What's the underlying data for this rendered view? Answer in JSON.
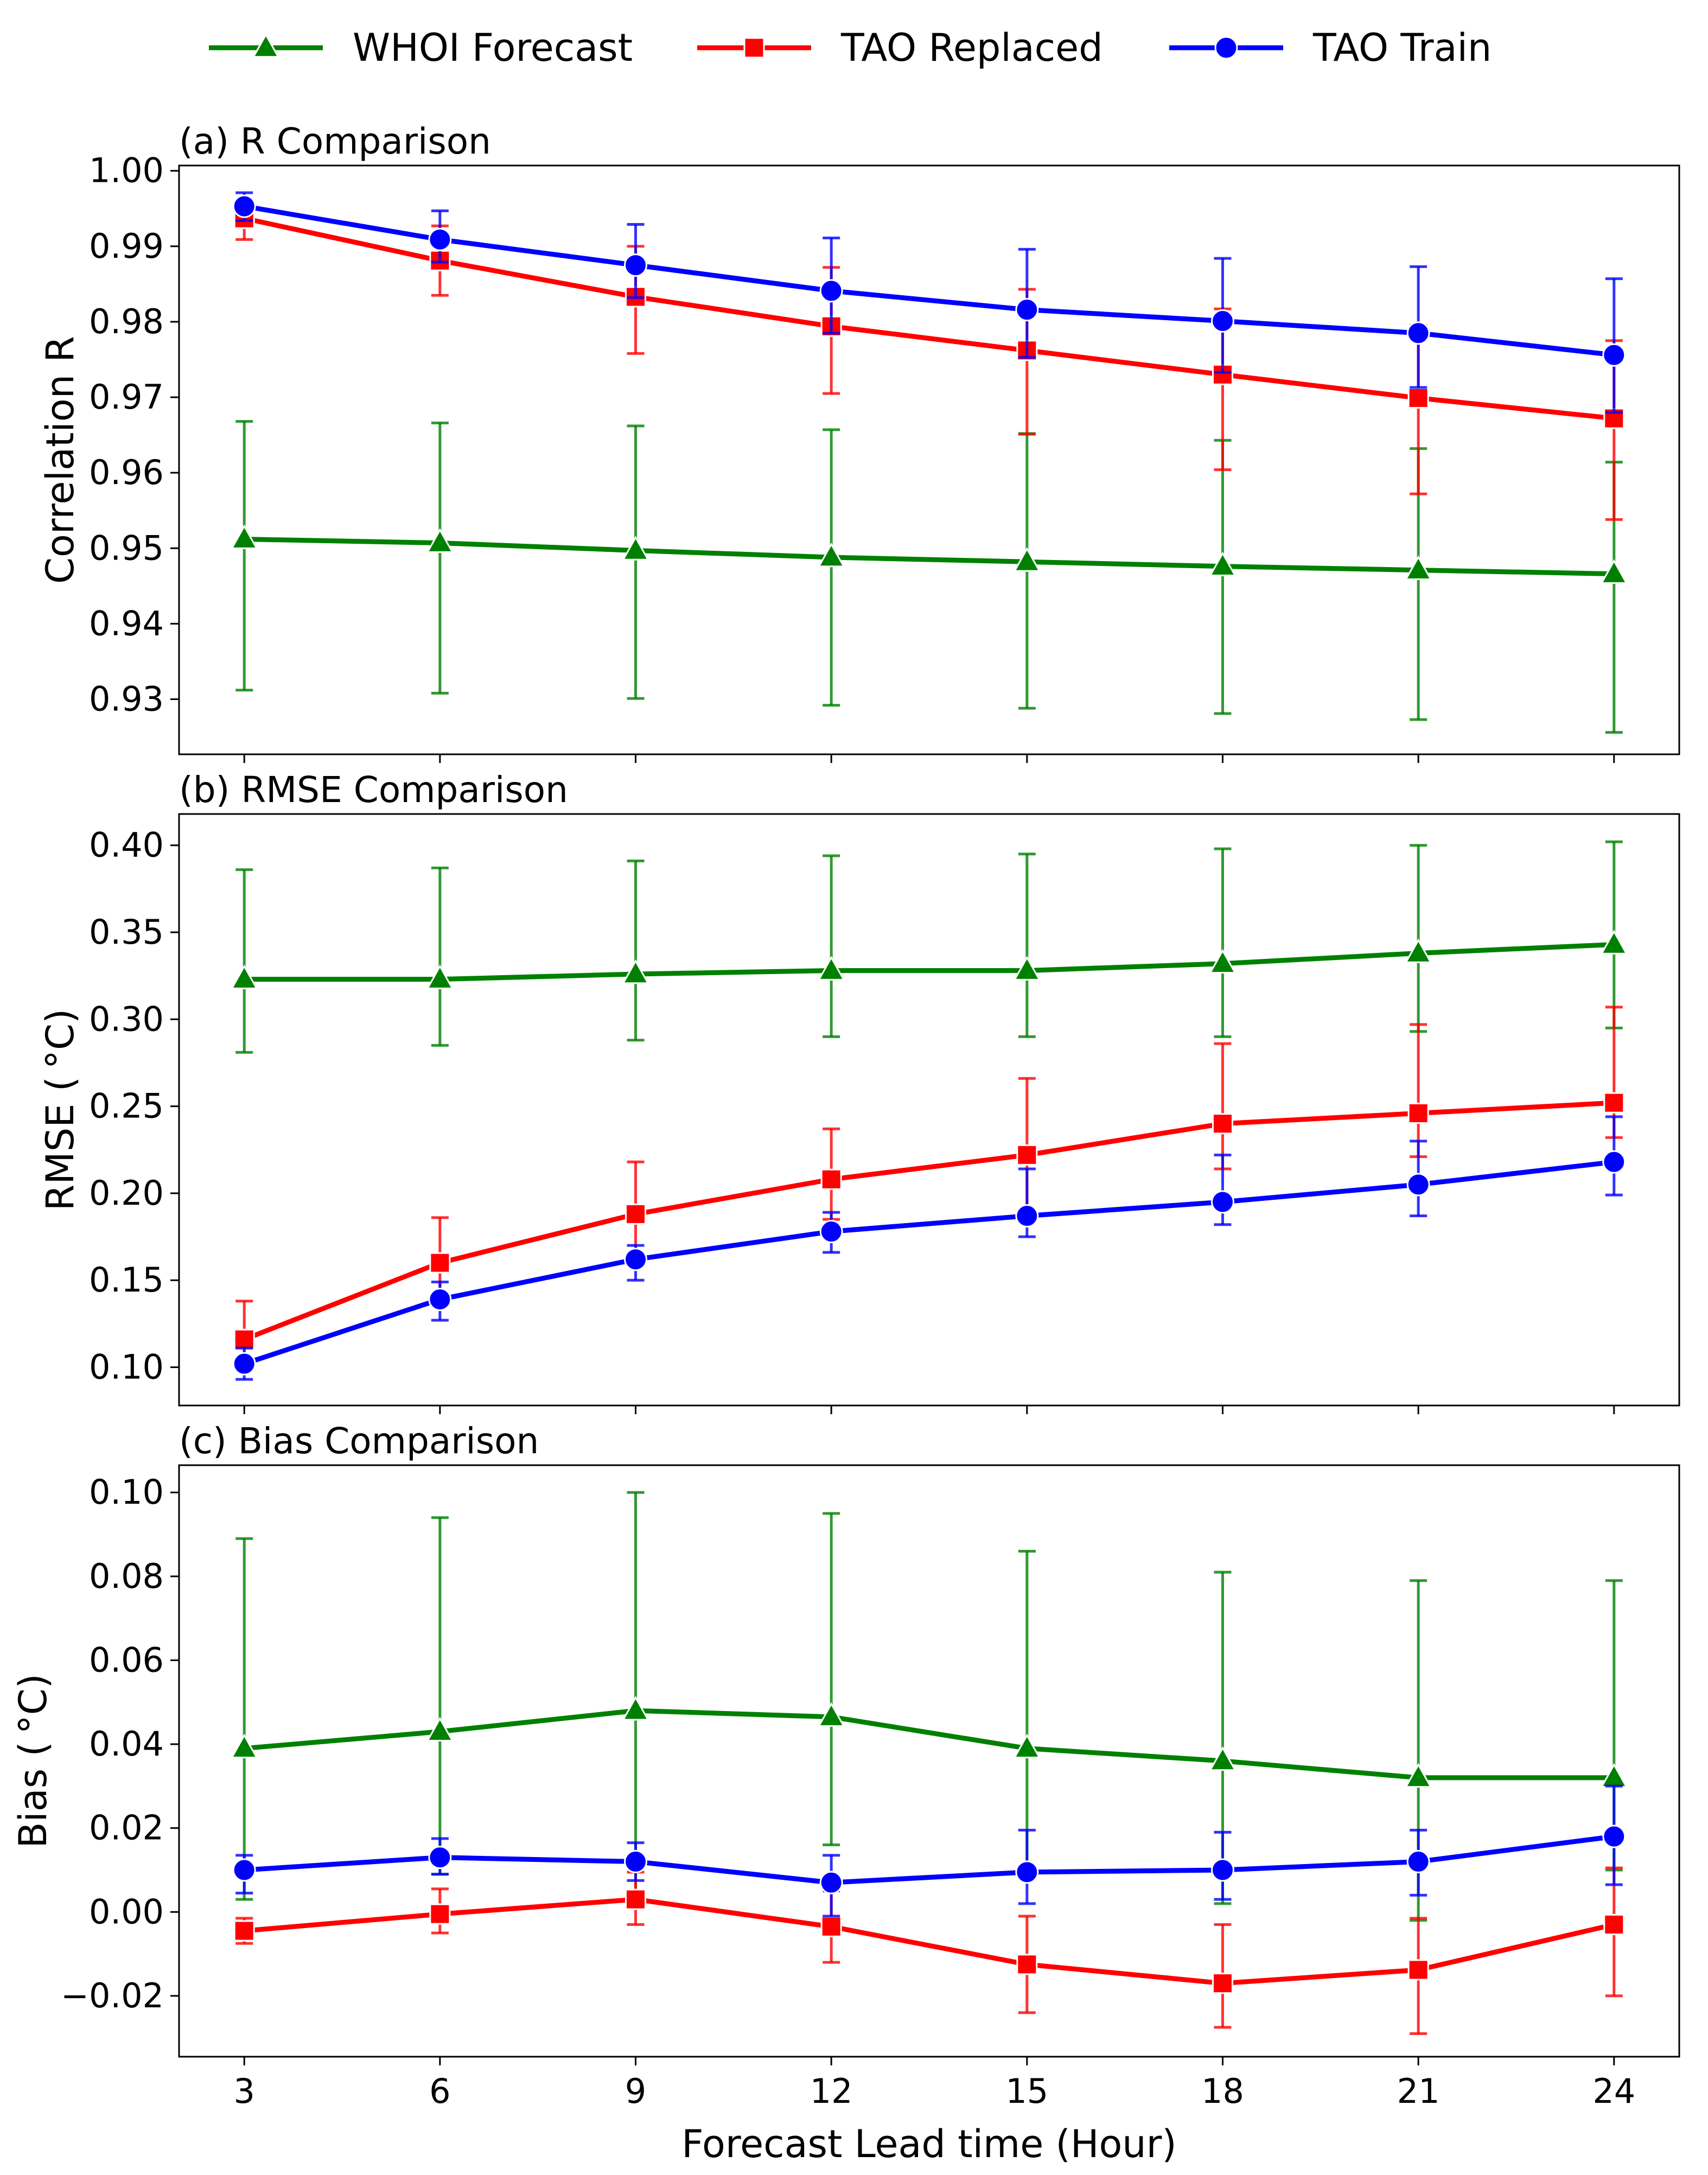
{
  "legend": {
    "items": [
      {
        "label": "WHOI Forecast",
        "color": "#008000",
        "marker": "triangle"
      },
      {
        "label": "TAO Replaced",
        "color": "#ff0000",
        "marker": "square"
      },
      {
        "label": "TAO Train",
        "color": "#0000ff",
        "marker": "circle"
      }
    ]
  },
  "xaxis": {
    "label": "Forecast Lead time (Hour)",
    "ticks": [
      3,
      6,
      9,
      12,
      15,
      18,
      21,
      24
    ],
    "xlim": [
      2,
      25
    ]
  },
  "chart_data": [
    {
      "type": "line",
      "title": "(a) R Comparison",
      "ylabel": "Correlation R",
      "ylim": [
        0.9227,
        1.0007
      ],
      "yticks": [
        0.93,
        0.94,
        0.95,
        0.96,
        0.97,
        0.98,
        0.99,
        1.0
      ],
      "yticklabels": [
        "0.93",
        "0.94",
        "0.95",
        "0.96",
        "0.97",
        "0.98",
        "0.99",
        "1.00"
      ],
      "x": [
        3,
        6,
        9,
        12,
        15,
        18,
        21,
        24
      ],
      "series": [
        {
          "name": "WHOI Forecast",
          "color": "#008000",
          "marker": "triangle",
          "values": [
            0.9512,
            0.9507,
            0.9497,
            0.9488,
            0.9482,
            0.9476,
            0.9471,
            0.9466
          ],
          "err_low": [
            0.9312,
            0.9308,
            0.9301,
            0.9292,
            0.9288,
            0.9281,
            0.9273,
            0.9256
          ],
          "err_high": [
            0.9668,
            0.9666,
            0.9662,
            0.9657,
            0.9652,
            0.9643,
            0.9632,
            0.9614
          ]
        },
        {
          "name": "TAO Replaced",
          "color": "#ff0000",
          "marker": "square",
          "values": [
            0.9937,
            0.9881,
            0.9833,
            0.9794,
            0.9762,
            0.973,
            0.9699,
            0.9672
          ],
          "err_low": [
            0.9909,
            0.9835,
            0.9758,
            0.9705,
            0.9651,
            0.9604,
            0.9572,
            0.9538
          ],
          "err_high": [
            0.9955,
            0.9927,
            0.99,
            0.9872,
            0.9843,
            0.9817,
            0.9795,
            0.9775
          ]
        },
        {
          "name": "TAO Train",
          "color": "#0000ff",
          "marker": "circle",
          "values": [
            0.9953,
            0.9909,
            0.9875,
            0.9841,
            0.9816,
            0.9801,
            0.9785,
            0.9756
          ],
          "err_low": [
            0.9934,
            0.9879,
            0.9832,
            0.9785,
            0.9753,
            0.9733,
            0.9713,
            0.968
          ],
          "err_high": [
            0.9971,
            0.9947,
            0.9929,
            0.9911,
            0.9896,
            0.9884,
            0.9873,
            0.9857
          ]
        }
      ]
    },
    {
      "type": "line",
      "title": "(b) RMSE Comparison",
      "ylabel": "RMSE ( °C)",
      "ylim": [
        0.078,
        0.418
      ],
      "yticks": [
        0.1,
        0.15,
        0.2,
        0.25,
        0.3,
        0.35,
        0.4
      ],
      "yticklabels": [
        "0.10",
        "0.15",
        "0.20",
        "0.25",
        "0.30",
        "0.35",
        "0.40"
      ],
      "x": [
        3,
        6,
        9,
        12,
        15,
        18,
        21,
        24
      ],
      "series": [
        {
          "name": "WHOI Forecast",
          "color": "#008000",
          "marker": "triangle",
          "values": [
            0.323,
            0.323,
            0.326,
            0.328,
            0.328,
            0.332,
            0.338,
            0.343
          ],
          "err_low": [
            0.281,
            0.285,
            0.288,
            0.29,
            0.29,
            0.29,
            0.293,
            0.295
          ],
          "err_high": [
            0.386,
            0.387,
            0.391,
            0.394,
            0.395,
            0.398,
            0.4,
            0.402
          ]
        },
        {
          "name": "TAO Replaced",
          "color": "#ff0000",
          "marker": "square",
          "values": [
            0.116,
            0.16,
            0.188,
            0.208,
            0.222,
            0.24,
            0.246,
            0.252
          ],
          "err_low": [
            0.101,
            0.14,
            0.164,
            0.185,
            0.187,
            0.214,
            0.221,
            0.232
          ],
          "err_high": [
            0.138,
            0.186,
            0.218,
            0.237,
            0.266,
            0.286,
            0.297,
            0.307
          ]
        },
        {
          "name": "TAO Train",
          "color": "#0000ff",
          "marker": "circle",
          "values": [
            0.102,
            0.139,
            0.162,
            0.178,
            0.187,
            0.195,
            0.205,
            0.218
          ],
          "err_low": [
            0.093,
            0.127,
            0.15,
            0.166,
            0.175,
            0.182,
            0.187,
            0.199
          ],
          "err_high": [
            0.111,
            0.149,
            0.17,
            0.189,
            0.214,
            0.222,
            0.23,
            0.244
          ]
        }
      ]
    },
    {
      "type": "line",
      "title": "(c) Bias Comparison",
      "ylabel": "Bias ( °C)",
      "ylim": [
        -0.0345,
        0.1065
      ],
      "yticks": [
        -0.02,
        0.0,
        0.02,
        0.04,
        0.06,
        0.08,
        0.1
      ],
      "yticklabels": [
        "−0.02",
        "0.00",
        "0.02",
        "0.04",
        "0.06",
        "0.08",
        "0.10"
      ],
      "x": [
        3,
        6,
        9,
        12,
        15,
        18,
        21,
        24
      ],
      "series": [
        {
          "name": "WHOI Forecast",
          "color": "#008000",
          "marker": "triangle",
          "values": [
            0.039,
            0.043,
            0.048,
            0.0465,
            0.039,
            0.036,
            0.032,
            0.032
          ],
          "err_low": [
            0.003,
            0.009,
            0.005,
            0.016,
            0.01,
            0.002,
            -0.002,
            0.01
          ],
          "err_high": [
            0.089,
            0.094,
            0.1,
            0.095,
            0.086,
            0.081,
            0.079,
            0.079
          ]
        },
        {
          "name": "TAO Replaced",
          "color": "#ff0000",
          "marker": "square",
          "values": [
            -0.0045,
            -0.0005,
            0.003,
            -0.0035,
            -0.0125,
            -0.017,
            -0.0138,
            -0.003
          ],
          "err_low": [
            -0.0075,
            -0.005,
            -0.003,
            -0.012,
            -0.024,
            -0.0275,
            -0.029,
            -0.02
          ],
          "err_high": [
            -0.0015,
            0.0055,
            0.0095,
            0.005,
            -0.001,
            -0.003,
            -0.0015,
            0.0105
          ]
        },
        {
          "name": "TAO Train",
          "color": "#0000ff",
          "marker": "circle",
          "values": [
            0.01,
            0.013,
            0.012,
            0.007,
            0.0095,
            0.01,
            0.012,
            0.018
          ],
          "err_low": [
            0.0045,
            0.009,
            0.0075,
            -0.001,
            0.002,
            0.003,
            0.004,
            0.0065
          ],
          "err_high": [
            0.0135,
            0.0175,
            0.0165,
            0.0135,
            0.0195,
            0.019,
            0.0195,
            0.03
          ]
        }
      ]
    }
  ]
}
